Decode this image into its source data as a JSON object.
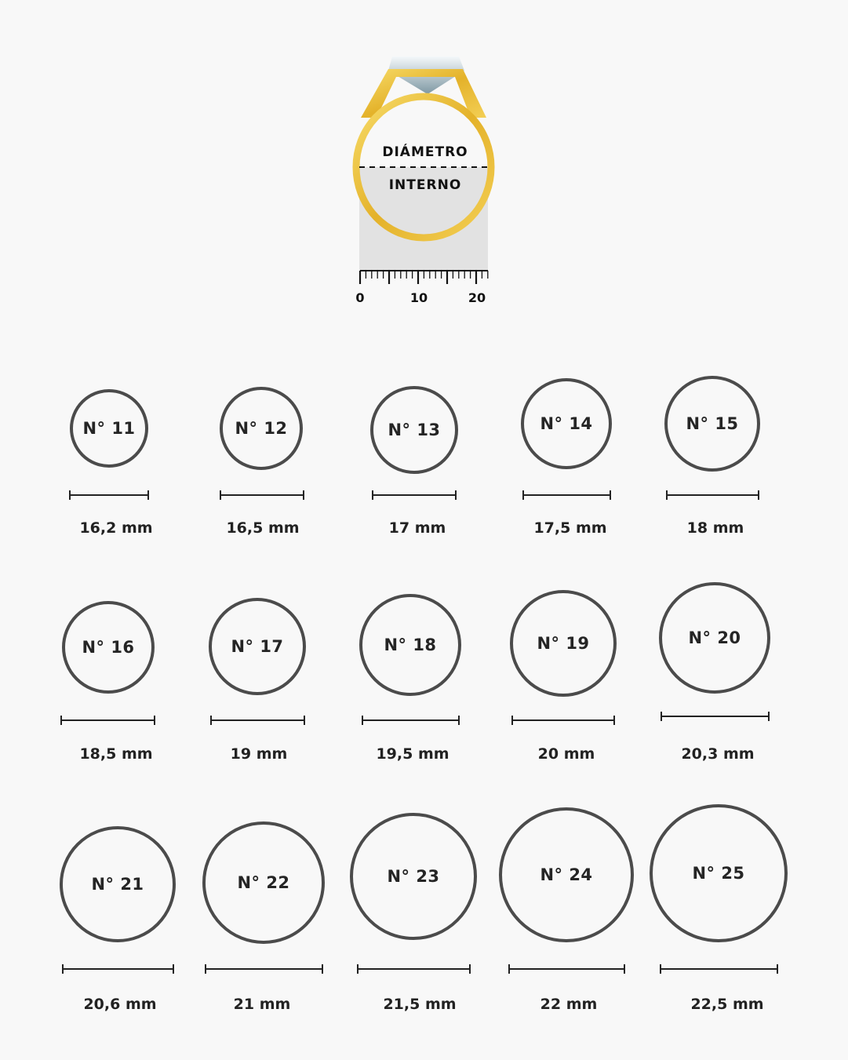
{
  "illustration": {
    "label_top": "DIÁMETRO",
    "label_bottom": "INTERNO",
    "ruler_labels": [
      "0",
      "10",
      "20"
    ],
    "colors": {
      "gold": "#e8b730",
      "gray_fill": "#e2e2e2",
      "stroke": "#4b4b4b"
    }
  },
  "rings": [
    {
      "label": "N° 11",
      "diameter": "16,2 mm"
    },
    {
      "label": "N° 12",
      "diameter": "16,5 mm"
    },
    {
      "label": "N° 13",
      "diameter": "17 mm"
    },
    {
      "label": "N° 14",
      "diameter": "17,5 mm"
    },
    {
      "label": "N° 15",
      "diameter": "18 mm"
    },
    {
      "label": "N° 16",
      "diameter": "18,5 mm"
    },
    {
      "label": "N° 17",
      "diameter": "19 mm"
    },
    {
      "label": "N° 18",
      "diameter": "19,5 mm"
    },
    {
      "label": "N° 19",
      "diameter": "20 mm"
    },
    {
      "label": "N° 20",
      "diameter": "20,3 mm"
    },
    {
      "label": "N° 21",
      "diameter": "20,6 mm"
    },
    {
      "label": "N° 22",
      "diameter": "21 mm"
    },
    {
      "label": "N° 23",
      "diameter": "21,5 mm"
    },
    {
      "label": "N° 24",
      "diameter": "22 mm"
    },
    {
      "label": "N° 25",
      "diameter": "22,5 mm"
    }
  ]
}
